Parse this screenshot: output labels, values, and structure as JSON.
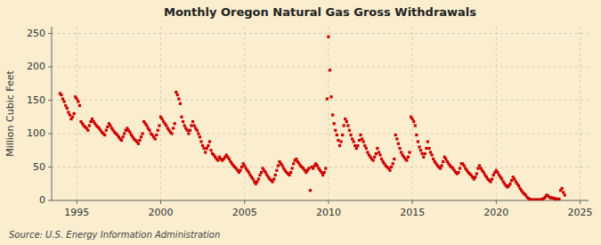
{
  "chart_data": {
    "type": "scatter",
    "title": "Monthly Oregon Natural Gas Gross Withdrawals",
    "ylabel": "Million Cubic Feet",
    "annotations": [
      "Source: U.S. Energy Information Administration"
    ],
    "color": "#cc0000",
    "marker": "square",
    "grid": true,
    "xlim": [
      1993.5,
      2025.5
    ],
    "xticks": [
      1995,
      2000,
      2005,
      2010,
      2015,
      2020,
      2025
    ],
    "ylim": [
      0,
      260
    ],
    "yticks": [
      0,
      50,
      100,
      150,
      200,
      250
    ],
    "x": [
      1994,
      1994.0833333333333,
      1994.1666666666667,
      1994.25,
      1994.3333333333333,
      1994.4166666666667,
      1994.5,
      1994.5833333333333,
      1994.6666666666667,
      1994.75,
      1994.8333333333333,
      1994.9166666666667,
      1995,
      1995.0833333333333,
      1995.1666666666667,
      1995.25,
      1995.3333333333333,
      1995.4166666666667,
      1995.5,
      1995.5833333333333,
      1995.6666666666667,
      1995.75,
      1995.8333333333333,
      1995.9166666666667,
      1996,
      1996.0833333333333,
      1996.1666666666667,
      1996.25,
      1996.3333333333333,
      1996.4166666666667,
      1996.5,
      1996.5833333333333,
      1996.6666666666667,
      1996.75,
      1996.8333333333333,
      1996.9166666666667,
      1997,
      1997.0833333333333,
      1997.1666666666667,
      1997.25,
      1997.3333333333333,
      1997.4166666666667,
      1997.5,
      1997.5833333333333,
      1997.6666666666667,
      1997.75,
      1997.8333333333333,
      1997.9166666666667,
      1998,
      1998.0833333333333,
      1998.1666666666667,
      1998.25,
      1998.3333333333333,
      1998.4166666666667,
      1998.5,
      1998.5833333333333,
      1998.6666666666667,
      1998.75,
      1998.8333333333333,
      1998.9166666666667,
      1999,
      1999.0833333333333,
      1999.1666666666667,
      1999.25,
      1999.3333333333333,
      1999.4166666666667,
      1999.5,
      1999.5833333333333,
      1999.6666666666667,
      1999.75,
      1999.8333333333333,
      1999.9166666666667,
      2000,
      2000.0833333333333,
      2000.1666666666667,
      2000.25,
      2000.3333333333333,
      2000.4166666666667,
      2000.5,
      2000.5833333333333,
      2000.6666666666667,
      2000.75,
      2000.8333333333333,
      2000.9166666666667,
      2001,
      2001.0833333333333,
      2001.1666666666667,
      2001.25,
      2001.3333333333333,
      2001.4166666666667,
      2001.5,
      2001.5833333333333,
      2001.6666666666667,
      2001.75,
      2001.8333333333333,
      2001.9166666666667,
      2002,
      2002.0833333333333,
      2002.1666666666667,
      2002.25,
      2002.3333333333333,
      2002.4166666666667,
      2002.5,
      2002.5833333333333,
      2002.6666666666667,
      2002.75,
      2002.8333333333333,
      2002.9166666666667,
      2003,
      2003.0833333333333,
      2003.1666666666667,
      2003.25,
      2003.3333333333333,
      2003.4166666666667,
      2003.5,
      2003.5833333333333,
      2003.6666666666667,
      2003.75,
      2003.8333333333333,
      2003.9166666666667,
      2004,
      2004.0833333333333,
      2004.1666666666667,
      2004.25,
      2004.3333333333333,
      2004.4166666666667,
      2004.5,
      2004.5833333333333,
      2004.6666666666667,
      2004.75,
      2004.8333333333333,
      2004.9166666666667,
      2005,
      2005.0833333333333,
      2005.1666666666667,
      2005.25,
      2005.3333333333333,
      2005.4166666666667,
      2005.5,
      2005.5833333333333,
      2005.6666666666667,
      2005.75,
      2005.8333333333333,
      2005.9166666666667,
      2006,
      2006.0833333333333,
      2006.1666666666667,
      2006.25,
      2006.3333333333333,
      2006.4166666666667,
      2006.5,
      2006.5833333333333,
      2006.6666666666667,
      2006.75,
      2006.8333333333333,
      2006.9166666666667,
      2007,
      2007.0833333333333,
      2007.1666666666667,
      2007.25,
      2007.3333333333333,
      2007.4166666666667,
      2007.5,
      2007.5833333333333,
      2007.6666666666667,
      2007.75,
      2007.8333333333333,
      2007.9166666666667,
      2008,
      2008.0833333333333,
      2008.1666666666667,
      2008.25,
      2008.3333333333333,
      2008.4166666666667,
      2008.5,
      2008.5833333333333,
      2008.6666666666667,
      2008.75,
      2008.8333333333333,
      2008.9166666666667,
      2009,
      2009.0833333333333,
      2009.1666666666667,
      2009.25,
      2009.3333333333333,
      2009.4166666666667,
      2009.5,
      2009.5833333333333,
      2009.6666666666667,
      2009.75,
      2009.8333333333333,
      2009.9166666666667,
      2010,
      2010.0833333333333,
      2010.1666666666667,
      2010.25,
      2010.3333333333333,
      2010.4166666666667,
      2010.5,
      2010.5833333333333,
      2010.6666666666667,
      2010.75,
      2010.8333333333333,
      2010.9166666666667,
      2011,
      2011.0833333333333,
      2011.1666666666667,
      2011.25,
      2011.3333333333333,
      2011.4166666666667,
      2011.5,
      2011.5833333333333,
      2011.6666666666667,
      2011.75,
      2011.8333333333333,
      2011.9166666666667,
      2012,
      2012.0833333333333,
      2012.1666666666667,
      2012.25,
      2012.3333333333333,
      2012.4166666666667,
      2012.5,
      2012.5833333333333,
      2012.6666666666667,
      2012.75,
      2012.8333333333333,
      2012.9166666666667,
      2013,
      2013.0833333333333,
      2013.1666666666667,
      2013.25,
      2013.3333333333333,
      2013.4166666666667,
      2013.5,
      2013.5833333333333,
      2013.6666666666667,
      2013.75,
      2013.8333333333333,
      2013.9166666666667,
      2014,
      2014.0833333333333,
      2014.1666666666667,
      2014.25,
      2014.3333333333333,
      2014.4166666666667,
      2014.5,
      2014.5833333333333,
      2014.6666666666667,
      2014.75,
      2014.8333333333333,
      2014.9166666666667,
      2015,
      2015.0833333333333,
      2015.1666666666667,
      2015.25,
      2015.3333333333333,
      2015.4166666666667,
      2015.5,
      2015.5833333333333,
      2015.6666666666667,
      2015.75,
      2015.8333333333333,
      2015.9166666666667,
      2016,
      2016.0833333333333,
      2016.1666666666667,
      2016.25,
      2016.3333333333333,
      2016.4166666666667,
      2016.5,
      2016.5833333333333,
      2016.6666666666667,
      2016.75,
      2016.8333333333333,
      2016.9166666666667,
      2017,
      2017.0833333333333,
      2017.1666666666667,
      2017.25,
      2017.3333333333333,
      2017.4166666666667,
      2017.5,
      2017.5833333333333,
      2017.6666666666667,
      2017.75,
      2017.8333333333333,
      2017.9166666666667,
      2018,
      2018.0833333333333,
      2018.1666666666667,
      2018.25,
      2018.3333333333333,
      2018.4166666666667,
      2018.5,
      2018.5833333333333,
      2018.6666666666667,
      2018.75,
      2018.8333333333333,
      2018.9166666666667,
      2019,
      2019.0833333333333,
      2019.1666666666667,
      2019.25,
      2019.3333333333333,
      2019.4166666666667,
      2019.5,
      2019.5833333333333,
      2019.6666666666667,
      2019.75,
      2019.8333333333333,
      2019.9166666666667,
      2020,
      2020.0833333333333,
      2020.1666666666667,
      2020.25,
      2020.3333333333333,
      2020.4166666666667,
      2020.5,
      2020.5833333333333,
      2020.6666666666667,
      2020.75,
      2020.8333333333333,
      2020.9166666666667,
      2021,
      2021.0833333333333,
      2021.1666666666667,
      2021.25,
      2021.3333333333333,
      2021.4166666666667,
      2021.5,
      2021.5833333333333,
      2021.6666666666667,
      2021.75,
      2021.8333333333333,
      2021.9166666666667,
      2022,
      2022.0833333333333,
      2022.1666666666667,
      2022.25,
      2022.3333333333333,
      2022.4166666666667,
      2022.5,
      2022.5833333333333,
      2022.6666666666667,
      2022.75,
      2022.8333333333333,
      2022.9166666666667,
      2023,
      2023.0833333333333,
      2023.1666666666667,
      2023.25,
      2023.3333333333333,
      2023.4166666666667,
      2023.5,
      2023.5833333333333,
      2023.6666666666667,
      2023.75,
      2023.8333333333333,
      2023.9166666666667,
      2024,
      2024.0833333333333
    ],
    "values": [
      160,
      158,
      152,
      148,
      142,
      138,
      132,
      128,
      122,
      125,
      130,
      155,
      152,
      148,
      142,
      118,
      115,
      112,
      110,
      108,
      105,
      112,
      118,
      122,
      118,
      115,
      112,
      110,
      108,
      105,
      102,
      100,
      98,
      105,
      110,
      115,
      112,
      108,
      105,
      102,
      100,
      98,
      95,
      92,
      90,
      95,
      100,
      105,
      108,
      105,
      102,
      98,
      95,
      92,
      90,
      88,
      85,
      90,
      95,
      100,
      118,
      115,
      112,
      108,
      105,
      100,
      98,
      95,
      92,
      98,
      105,
      112,
      125,
      122,
      118,
      115,
      112,
      108,
      105,
      102,
      100,
      108,
      115,
      162,
      158,
      152,
      145,
      125,
      118,
      112,
      108,
      105,
      100,
      105,
      112,
      118,
      112,
      108,
      105,
      100,
      95,
      88,
      82,
      78,
      72,
      78,
      82,
      88,
      75,
      70,
      68,
      65,
      62,
      60,
      65,
      62,
      60,
      62,
      65,
      68,
      65,
      62,
      58,
      55,
      52,
      50,
      48,
      45,
      42,
      45,
      50,
      55,
      52,
      48,
      45,
      42,
      38,
      35,
      32,
      28,
      25,
      28,
      32,
      38,
      42,
      48,
      45,
      42,
      38,
      35,
      32,
      30,
      28,
      32,
      38,
      45,
      52,
      58,
      55,
      52,
      48,
      45,
      42,
      40,
      38,
      42,
      48,
      55,
      60,
      62,
      58,
      55,
      52,
      50,
      48,
      45,
      42,
      45,
      48,
      15,
      50,
      48,
      52,
      55,
      52,
      48,
      45,
      42,
      38,
      42,
      48,
      152,
      245,
      195,
      155,
      128,
      115,
      105,
      98,
      90,
      82,
      88,
      98,
      112,
      122,
      118,
      112,
      105,
      98,
      92,
      88,
      82,
      78,
      82,
      90,
      98,
      92,
      88,
      82,
      78,
      72,
      68,
      65,
      62,
      60,
      65,
      70,
      78,
      72,
      68,
      62,
      58,
      55,
      52,
      50,
      48,
      45,
      50,
      55,
      62,
      98,
      92,
      85,
      78,
      72,
      68,
      65,
      62,
      60,
      65,
      72,
      125,
      122,
      118,
      112,
      98,
      88,
      80,
      75,
      70,
      65,
      70,
      78,
      88,
      78,
      72,
      68,
      62,
      58,
      55,
      52,
      50,
      48,
      52,
      58,
      65,
      62,
      58,
      55,
      52,
      50,
      48,
      45,
      42,
      40,
      42,
      48,
      55,
      55,
      52,
      48,
      45,
      42,
      40,
      38,
      35,
      32,
      35,
      40,
      48,
      52,
      48,
      45,
      42,
      38,
      35,
      32,
      30,
      28,
      32,
      38,
      42,
      45,
      42,
      38,
      35,
      32,
      28,
      25,
      22,
      20,
      22,
      25,
      30,
      35,
      32,
      28,
      25,
      22,
      18,
      15,
      12,
      10,
      8,
      5,
      3,
      2,
      1,
      1,
      1,
      1,
      1,
      1,
      1,
      1,
      2,
      3,
      5,
      8,
      7,
      5,
      4,
      4,
      3,
      3,
      2,
      2,
      2,
      15,
      18,
      12,
      8
    ]
  }
}
